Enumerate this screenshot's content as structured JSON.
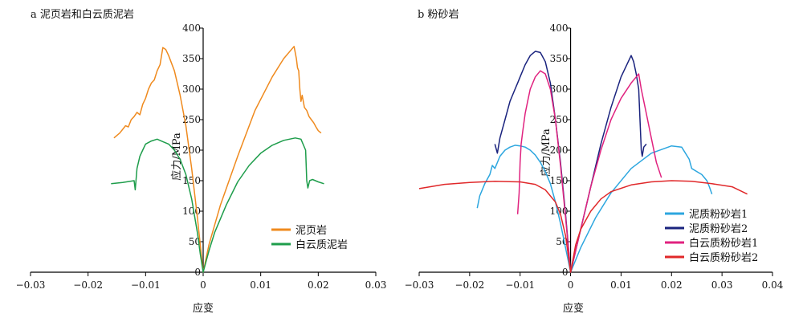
{
  "chart_data": [
    {
      "type": "line",
      "title": "a 泥页岩和白云质泥岩",
      "xlabel": "应变",
      "ylabel": "应力/MPa",
      "xlim": [
        -0.03,
        0.03
      ],
      "ylim": [
        0,
        400
      ],
      "xticks": [
        -0.03,
        -0.02,
        -0.01,
        0,
        0.01,
        0.02,
        0.03
      ],
      "xtick_labels": [
        "−0.03",
        "−0.02",
        "−0.01",
        "0",
        "0.01",
        "0.02",
        "0.03"
      ],
      "yticks": [
        0,
        50,
        100,
        150,
        200,
        250,
        300,
        350,
        400
      ],
      "ytick_labels": [
        "0",
        "50",
        "100",
        "150",
        "200",
        "250",
        "300",
        "350",
        "400"
      ],
      "legend_position": "bottom-right",
      "series": [
        {
          "name": "泥页岩",
          "color": "#ef8a1e",
          "x": [
            -0.0155,
            -0.0145,
            -0.0135,
            -0.013,
            -0.0125,
            -0.012,
            -0.0115,
            -0.011,
            -0.0105,
            -0.01,
            -0.0095,
            -0.009,
            -0.0085,
            -0.008,
            -0.0075,
            -0.007,
            -0.0065,
            -0.006,
            -0.005,
            -0.004,
            -0.003,
            -0.002,
            -0.001,
            -0.0005,
            0,
            0.001,
            0.003,
            0.006,
            0.009,
            0.012,
            0.014,
            0.0158,
            0.0162,
            0.0164,
            0.0166,
            0.0168,
            0.017,
            0.0172,
            0.0176,
            0.018,
            0.0184,
            0.0188,
            0.0192,
            0.0196,
            0.02,
            0.0205
          ],
          "y": [
            220,
            228,
            240,
            238,
            250,
            255,
            262,
            258,
            275,
            285,
            300,
            310,
            315,
            330,
            340,
            368,
            365,
            355,
            330,
            290,
            240,
            170,
            90,
            45,
            0,
            45,
            110,
            190,
            265,
            320,
            350,
            370,
            350,
            335,
            330,
            300,
            280,
            290,
            270,
            265,
            255,
            250,
            245,
            238,
            232,
            228
          ],
          "legend": "泥页岩"
        },
        {
          "name": "白云质泥岩",
          "color": "#1e9d4b",
          "x": [
            -0.016,
            -0.014,
            -0.012,
            -0.0118,
            -0.0115,
            -0.011,
            -0.0105,
            -0.01,
            -0.009,
            -0.008,
            -0.007,
            -0.006,
            -0.005,
            -0.004,
            -0.003,
            -0.002,
            -0.001,
            -0.0005,
            0,
            0.001,
            0.002,
            0.004,
            0.006,
            0.008,
            0.01,
            0.012,
            0.014,
            0.016,
            0.017,
            0.0178,
            0.018,
            0.0182,
            0.0185,
            0.019,
            0.02,
            0.021
          ],
          "y": [
            145,
            147,
            150,
            135,
            170,
            190,
            200,
            210,
            215,
            218,
            214,
            210,
            200,
            185,
            160,
            120,
            65,
            30,
            0,
            35,
            65,
            110,
            148,
            175,
            195,
            208,
            216,
            220,
            218,
            200,
            150,
            138,
            150,
            152,
            148,
            145
          ],
          "legend": "白云质泥岩"
        }
      ]
    },
    {
      "type": "line",
      "title": "b 粉砂岩",
      "xlabel": "应变",
      "ylabel": "应力/MPa",
      "xlim": [
        -0.03,
        0.04
      ],
      "ylim": [
        0,
        400
      ],
      "xticks": [
        -0.03,
        -0.02,
        -0.01,
        0,
        0.01,
        0.02,
        0.03,
        0.04
      ],
      "xtick_labels": [
        "−0.03",
        "−0.02",
        "−0.01",
        "0",
        "0.01",
        "0.02",
        "0.03",
        "0.04"
      ],
      "yticks": [
        0,
        50,
        100,
        150,
        200,
        250,
        300,
        350,
        400
      ],
      "ytick_labels": [
        "0",
        "50",
        "100",
        "150",
        "200",
        "250",
        "300",
        "350",
        "400"
      ],
      "legend_position": "bottom-right",
      "series": [
        {
          "name": "泥质粉砂岩1",
          "color": "#2ca6df",
          "x": [
            -0.0185,
            -0.018,
            -0.017,
            -0.016,
            -0.0155,
            -0.015,
            -0.014,
            -0.013,
            -0.012,
            -0.011,
            -0.01,
            -0.009,
            -0.008,
            -0.007,
            -0.006,
            -0.005,
            -0.004,
            -0.003,
            -0.002,
            -0.001,
            0,
            0.002,
            0.005,
            0.008,
            0.012,
            0.016,
            0.02,
            0.022,
            0.0235,
            0.024,
            0.025,
            0.026,
            0.027,
            0.0275,
            0.028
          ],
          "y": [
            105,
            125,
            145,
            160,
            175,
            170,
            190,
            200,
            205,
            208,
            207,
            205,
            200,
            192,
            180,
            165,
            145,
            115,
            80,
            40,
            0,
            40,
            90,
            130,
            170,
            195,
            207,
            205,
            185,
            170,
            165,
            160,
            150,
            140,
            128
          ],
          "legend": "泥质粉砂岩1"
        },
        {
          "name": "泥质粉砂岩2",
          "color": "#1a237e",
          "x": [
            -0.015,
            -0.0145,
            -0.014,
            -0.013,
            -0.012,
            -0.011,
            -0.0105,
            -0.01,
            -0.009,
            -0.008,
            -0.007,
            -0.006,
            -0.005,
            -0.004,
            -0.003,
            -0.002,
            -0.001,
            0,
            0.002,
            0.004,
            0.006,
            0.008,
            0.01,
            0.012,
            0.0125,
            0.013,
            0.0135,
            0.014,
            0.0142,
            0.0145,
            0.015
          ],
          "y": [
            210,
            195,
            220,
            250,
            280,
            300,
            310,
            320,
            340,
            355,
            362,
            360,
            345,
            310,
            250,
            180,
            95,
            0,
            70,
            140,
            210,
            270,
            320,
            355,
            345,
            325,
            300,
            200,
            190,
            205,
            210
          ],
          "legend": "泥质粉砂岩2"
        },
        {
          "name": "白云质粉砂岩1",
          "color": "#e0227f",
          "x": [
            -0.0105,
            -0.0102,
            -0.01,
            -0.0098,
            -0.0095,
            -0.009,
            -0.0085,
            -0.008,
            -0.007,
            -0.006,
            -0.005,
            -0.004,
            -0.003,
            -0.002,
            -0.001,
            0,
            0.002,
            0.004,
            0.006,
            0.008,
            0.01,
            0.012,
            0.013,
            0.0135,
            0.014,
            0.015,
            0.016,
            0.017,
            0.018
          ],
          "y": [
            95,
            130,
            180,
            210,
            230,
            260,
            280,
            300,
            320,
            330,
            325,
            300,
            250,
            175,
            90,
            0,
            70,
            140,
            200,
            250,
            285,
            310,
            320,
            325,
            300,
            260,
            220,
            180,
            155
          ],
          "legend": "白云质粉砂岩1"
        },
        {
          "name": "白云质粉砂岩2",
          "color": "#e0282a",
          "x": [
            -0.03,
            -0.025,
            -0.02,
            -0.015,
            -0.01,
            -0.007,
            -0.005,
            -0.003,
            -0.002,
            -0.001,
            0,
            0.001,
            0.002,
            0.004,
            0.006,
            0.008,
            0.012,
            0.016,
            0.02,
            0.024,
            0.028,
            0.032,
            0.035
          ],
          "y": [
            137,
            144,
            147,
            149,
            148,
            144,
            135,
            115,
            95,
            60,
            0,
            45,
            70,
            100,
            120,
            132,
            143,
            148,
            150,
            149,
            145,
            140,
            128
          ],
          "legend": "白云质粉砂岩2"
        }
      ]
    }
  ]
}
